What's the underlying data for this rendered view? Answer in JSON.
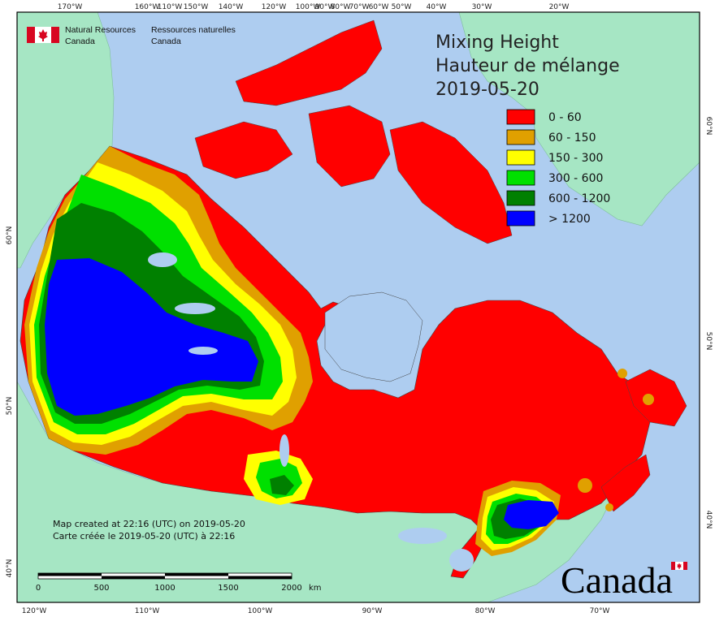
{
  "agency": {
    "name_en_line1": "Natural Resources",
    "name_en_line2": "Canada",
    "name_fr_line1": "Ressources naturelles",
    "name_fr_line2": "Canada"
  },
  "title": {
    "line1": "Mixing Height",
    "line2": "Hauteur de mélange",
    "date": "2019-05-20"
  },
  "legend": [
    {
      "label": "0 - 60",
      "color": "#ff0000"
    },
    {
      "label": "60 - 150",
      "color": "#e0a000"
    },
    {
      "label": "150 - 300",
      "color": "#ffff00"
    },
    {
      "label": "300 - 600",
      "color": "#00e000"
    },
    {
      "label": "600 - 1200",
      "color": "#008000"
    },
    {
      "label": "> 1200",
      "color": "#0000ff"
    }
  ],
  "top_ticks": [
    "170°W",
    "160°W",
    "150°W",
    "140°W",
    "120°W",
    "100°W",
    "80°W",
    "60°W",
    "50°W",
    "40°W",
    "30°W",
    "20°W",
    "110°W",
    "90°W",
    "70°W"
  ],
  "bottom_ticks": [
    "120°W",
    "110°W",
    "100°W",
    "90°W",
    "80°W",
    "70°W"
  ],
  "left_ticks": [
    "60°N",
    "50°N",
    "40°N"
  ],
  "right_ticks": [
    "60°N",
    "50°N",
    "40°N"
  ],
  "notes": {
    "created_en": "Map created at 22:16 (UTC) on 2019-05-20",
    "created_fr": "Carte créée le 2019-05-20 (UTC) à 22:16"
  },
  "scale": {
    "ticks": [
      "0",
      "500",
      "1000",
      "1500",
      "2000"
    ],
    "unit": "km"
  },
  "wordmark": "Canada",
  "colors": {
    "ocean": "#aecdf0",
    "foreign_land": "#a6e6c4",
    "frame": "#000000"
  }
}
